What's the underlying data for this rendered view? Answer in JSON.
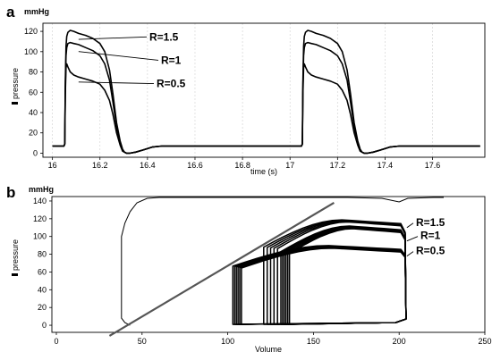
{
  "chart_data": [
    {
      "panel": "a",
      "type": "line",
      "unit": "mmHg",
      "xlabel": "time (s)",
      "ylabel": "pressure",
      "xlim": [
        15.96,
        17.82
      ],
      "ylim": [
        -4,
        128
      ],
      "xticks": [
        16,
        16.2,
        16.4,
        16.6,
        16.8,
        17,
        17.2,
        17.4,
        17.6
      ],
      "yticks": [
        0,
        20,
        40,
        60,
        80,
        100,
        120
      ],
      "grid": "vertical",
      "series": [
        {
          "name": "R=1.5",
          "label_y": 111,
          "t": [
            16.0,
            16.048,
            16.052,
            16.054,
            16.057,
            16.06,
            16.065,
            16.075,
            16.09,
            16.11,
            16.14,
            16.17,
            16.2,
            16.22,
            16.24,
            16.255,
            16.27,
            16.285,
            16.295,
            16.303,
            16.312,
            16.325,
            16.35,
            16.38,
            16.42,
            16.46,
            17.0,
            17.048,
            17.052,
            17.054,
            17.057,
            17.06,
            17.065,
            17.075,
            17.09,
            17.11,
            17.14,
            17.17,
            17.2,
            17.22,
            17.24,
            17.255,
            17.27,
            17.285,
            17.295,
            17.303,
            17.312,
            17.325,
            17.35,
            17.38,
            17.42,
            17.46,
            17.8
          ],
          "p": [
            7,
            7,
            9,
            70,
            105,
            115,
            119,
            121,
            120,
            118,
            116,
            113,
            108,
            100,
            82,
            58,
            30,
            12,
            4,
            1,
            0,
            0,
            1,
            3,
            6,
            7,
            7,
            7,
            9,
            70,
            105,
            115,
            119,
            121,
            120,
            118,
            116,
            113,
            108,
            100,
            82,
            58,
            30,
            12,
            4,
            1,
            0,
            0,
            1,
            3,
            6,
            7,
            7
          ]
        },
        {
          "name": "R=1",
          "label_y": 88,
          "t": [
            16.0,
            16.048,
            16.052,
            16.054,
            16.057,
            16.06,
            16.065,
            16.075,
            16.09,
            16.11,
            16.14,
            16.17,
            16.2,
            16.22,
            16.24,
            16.255,
            16.27,
            16.285,
            16.295,
            16.303,
            16.312,
            16.325,
            16.35,
            16.38,
            16.42,
            16.46,
            17.0,
            17.048,
            17.052,
            17.054,
            17.057,
            17.06,
            17.065,
            17.075,
            17.09,
            17.11,
            17.14,
            17.17,
            17.2,
            17.22,
            17.24,
            17.255,
            17.27,
            17.285,
            17.295,
            17.303,
            17.312,
            17.325,
            17.35,
            17.38,
            17.42,
            17.46,
            17.8
          ],
          "p": [
            7,
            7,
            9,
            64,
            96,
            104,
            108,
            109,
            108,
            107,
            104,
            101,
            96,
            88,
            72,
            50,
            26,
            10,
            3,
            1,
            0,
            0,
            1,
            3,
            6,
            7,
            7,
            7,
            9,
            64,
            96,
            104,
            108,
            109,
            108,
            107,
            104,
            101,
            96,
            88,
            72,
            50,
            26,
            10,
            3,
            1,
            0,
            0,
            1,
            3,
            6,
            7,
            7
          ]
        },
        {
          "name": "R=0.5",
          "label_y": 65,
          "t": [
            16.0,
            16.048,
            16.052,
            16.054,
            16.057,
            16.06,
            16.065,
            16.075,
            16.09,
            16.11,
            16.14,
            16.17,
            16.2,
            16.22,
            16.24,
            16.255,
            16.27,
            16.285,
            16.295,
            16.303,
            16.312,
            16.325,
            16.35,
            16.38,
            16.42,
            16.46,
            17.0,
            17.048,
            17.052,
            17.054,
            17.057,
            17.06,
            17.065,
            17.075,
            17.09,
            17.11,
            17.14,
            17.17,
            17.2,
            17.22,
            17.24,
            17.255,
            17.27,
            17.285,
            17.295,
            17.303,
            17.312,
            17.325,
            17.35,
            17.38,
            17.42,
            17.46,
            17.8
          ],
          "p": [
            7,
            7,
            9,
            58,
            84,
            88,
            85,
            80,
            77,
            75,
            73,
            71,
            68,
            62,
            52,
            38,
            20,
            8,
            2,
            1,
            0,
            0,
            1,
            3,
            6,
            7,
            7,
            7,
            9,
            58,
            84,
            88,
            85,
            80,
            77,
            75,
            73,
            71,
            68,
            62,
            52,
            38,
            20,
            8,
            2,
            1,
            0,
            0,
            1,
            3,
            6,
            7,
            7
          ]
        }
      ]
    },
    {
      "panel": "b",
      "type": "line",
      "unit": "mmHg",
      "xlabel": "Volume",
      "ylabel": "pressure",
      "xlim": [
        0,
        250
      ],
      "ylim": [
        -8,
        145
      ],
      "xticks": [
        0,
        50,
        100,
        150,
        200,
        250
      ],
      "yticks": [
        0,
        20,
        40,
        60,
        80,
        100,
        120,
        140
      ],
      "grid": "none",
      "series": [
        {
          "name": "R=1.5",
          "label_y": 112,
          "esv": [
            121,
            123,
            125,
            127,
            129
          ],
          "peak": 119
        },
        {
          "name": "R=1",
          "label_y": 97,
          "esv": [
            131,
            132,
            133,
            134,
            135,
            136
          ],
          "peak": 112
        },
        {
          "name": "R=0.5",
          "label_y": 80,
          "esv": [
            103,
            104,
            105,
            106,
            107,
            108
          ],
          "peak": 90
        }
      ],
      "edv": 204,
      "transient": {
        "v": [
          43,
          40,
          38,
          38,
          38,
          38,
          38,
          40,
          43,
          47,
          53,
          60,
          75,
          90,
          110,
          130,
          150,
          170,
          190,
          200,
          205,
          220,
          226
        ],
        "p": [
          0,
          3,
          8,
          20,
          50,
          80,
          100,
          115,
          128,
          138,
          143,
          144,
          144,
          144,
          144,
          144,
          144,
          144,
          143,
          139,
          143,
          144,
          144
        ]
      },
      "espvr_line": {
        "v": [
          31,
          162
        ],
        "p": [
          -12,
          138
        ]
      }
    }
  ]
}
